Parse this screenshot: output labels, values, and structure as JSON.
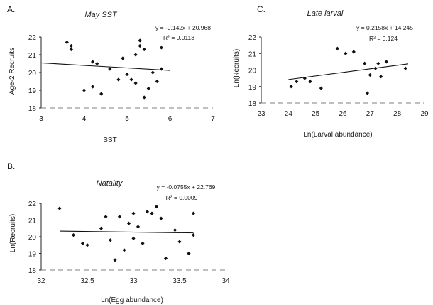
{
  "chart_data": [
    {
      "type": "scatter",
      "panel_label": "A.",
      "title": "May SST",
      "xlabel": "SST",
      "ylabel": "Age-2 Recruits",
      "xlim": [
        3,
        7
      ],
      "ylim": [
        18,
        22
      ],
      "xticks": [
        "3",
        "4",
        "5",
        "6",
        "7"
      ],
      "yticks": [
        "18",
        "19",
        "20",
        "21",
        "22"
      ],
      "equation": "y = -0.142x + 20.968",
      "r2": "R² = 0.0113",
      "trend": {
        "slope": -0.142,
        "intercept": 20.968,
        "x0": 3,
        "x1": 6
      },
      "points": [
        [
          3.6,
          21.7
        ],
        [
          3.7,
          21.5
        ],
        [
          3.7,
          21.3
        ],
        [
          4.0,
          19.0
        ],
        [
          4.2,
          20.6
        ],
        [
          4.2,
          19.2
        ],
        [
          4.3,
          20.5
        ],
        [
          4.4,
          18.8
        ],
        [
          4.6,
          20.2
        ],
        [
          4.8,
          19.6
        ],
        [
          4.9,
          20.8
        ],
        [
          5.0,
          19.9
        ],
        [
          5.1,
          19.6
        ],
        [
          5.2,
          21.0
        ],
        [
          5.2,
          19.4
        ],
        [
          5.3,
          21.8
        ],
        [
          5.3,
          21.5
        ],
        [
          5.4,
          21.3
        ],
        [
          5.4,
          18.6
        ],
        [
          5.5,
          19.1
        ],
        [
          5.6,
          20.0
        ],
        [
          5.7,
          19.5
        ],
        [
          5.8,
          20.2
        ],
        [
          5.8,
          21.4
        ]
      ]
    },
    {
      "type": "scatter",
      "panel_label": "C.",
      "title": "Late larval",
      "xlabel": "Ln(Larval abundance)",
      "ylabel": "Ln(Recruits)",
      "xlim": [
        23,
        29
      ],
      "ylim": [
        18,
        22
      ],
      "xticks": [
        "23",
        "24",
        "25",
        "26",
        "27",
        "28",
        "29"
      ],
      "yticks": [
        "18",
        "19",
        "20",
        "21",
        "22"
      ],
      "equation": "y = 0.2158x + 14.245",
      "r2": "R² = 0.124",
      "trend": {
        "slope": 0.2158,
        "intercept": 14.245,
        "x0": 24,
        "x1": 28.4
      },
      "points": [
        [
          24.1,
          19.0
        ],
        [
          24.3,
          19.3
        ],
        [
          24.6,
          19.5
        ],
        [
          24.8,
          19.3
        ],
        [
          25.2,
          18.9
        ],
        [
          25.8,
          21.3
        ],
        [
          26.1,
          21.0
        ],
        [
          26.4,
          21.1
        ],
        [
          26.8,
          20.4
        ],
        [
          26.9,
          18.6
        ],
        [
          27.0,
          19.7
        ],
        [
          27.2,
          20.1
        ],
        [
          27.3,
          20.4
        ],
        [
          27.4,
          19.6
        ],
        [
          27.6,
          20.5
        ],
        [
          28.3,
          20.1
        ]
      ]
    },
    {
      "type": "scatter",
      "panel_label": "B.",
      "title": "Natality",
      "xlabel": "Ln(Egg abundance)",
      "ylabel": "Ln(Recruits)",
      "xlim": [
        32,
        34
      ],
      "ylim": [
        18,
        22
      ],
      "xticks": [
        "32",
        "32.5",
        "33",
        "33.5",
        "34"
      ],
      "yticks": [
        "18",
        "19",
        "20",
        "21",
        "22"
      ],
      "equation": "y = -0.0755x + 22.769",
      "r2": "R² = 0.0009",
      "trend": {
        "slope": -0.0755,
        "intercept": 22.769,
        "x0": 32.2,
        "x1": 33.65
      },
      "points": [
        [
          32.2,
          21.7
        ],
        [
          32.35,
          20.1
        ],
        [
          32.45,
          19.6
        ],
        [
          32.5,
          19.5
        ],
        [
          32.65,
          20.5
        ],
        [
          32.7,
          21.2
        ],
        [
          32.75,
          19.8
        ],
        [
          32.8,
          18.6
        ],
        [
          32.85,
          21.2
        ],
        [
          32.9,
          19.2
        ],
        [
          32.95,
          20.8
        ],
        [
          33.0,
          21.4
        ],
        [
          33.0,
          19.9
        ],
        [
          33.05,
          20.6
        ],
        [
          33.1,
          19.6
        ],
        [
          33.15,
          21.5
        ],
        [
          33.2,
          21.4
        ],
        [
          33.25,
          21.8
        ],
        [
          33.3,
          21.1
        ],
        [
          33.35,
          18.7
        ],
        [
          33.45,
          20.4
        ],
        [
          33.5,
          19.7
        ],
        [
          33.6,
          19.0
        ],
        [
          33.65,
          20.1
        ],
        [
          33.65,
          21.4
        ]
      ]
    }
  ]
}
